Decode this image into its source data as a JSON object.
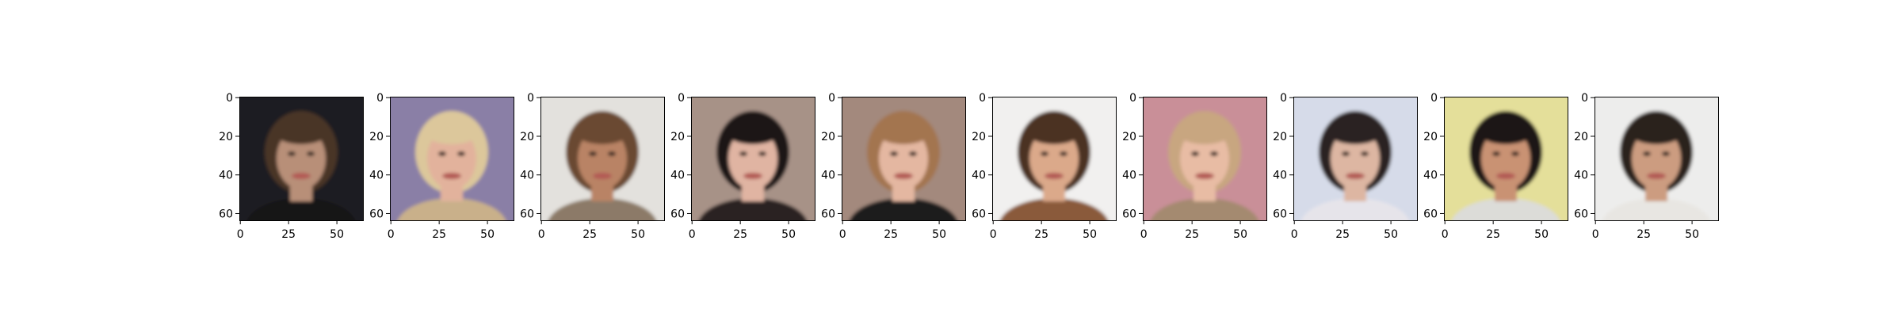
{
  "chart_data": {
    "type": "image-grid",
    "panel_count": 10,
    "image_size": [
      64,
      64
    ],
    "x_ticks": [
      0,
      25,
      50
    ],
    "y_ticks": [
      0,
      20,
      40,
      60
    ],
    "grid": false,
    "panels": [
      {
        "content": "portrait",
        "background": "dark",
        "bg_color": "#1c1a22",
        "hair_color": "#4a3526",
        "skin_color": "#b88f78",
        "shirt_color": "#141218"
      },
      {
        "content": "portrait",
        "background": "purple",
        "bg_color": "#8a7fa6",
        "hair_color": "#dcc79b",
        "skin_color": "#e2b29c",
        "shirt_color": "#c9b08a"
      },
      {
        "content": "portrait",
        "background": "light",
        "bg_color": "#e3e1dd",
        "hair_color": "#6a4a30",
        "skin_color": "#b98365",
        "shirt_color": "#8c7a68"
      },
      {
        "content": "portrait",
        "background": "gray",
        "bg_color": "#a79287",
        "hair_color": "#1f1714",
        "skin_color": "#e0b4a2",
        "shirt_color": "#2a2321"
      },
      {
        "content": "portrait",
        "background": "taupe",
        "bg_color": "#a3897d",
        "hair_color": "#a37550",
        "skin_color": "#e4b7a1",
        "shirt_color": "#1e1c1c"
      },
      {
        "content": "portrait",
        "background": "white",
        "bg_color": "#f1f0ef",
        "hair_color": "#4b3021",
        "skin_color": "#dba98a",
        "shirt_color": "#8a5a3a"
      },
      {
        "content": "portrait",
        "background": "pink",
        "bg_color": "#c98f98",
        "hair_color": "#c8a680",
        "skin_color": "#e8bca4",
        "shirt_color": "#a48a70"
      },
      {
        "content": "portrait",
        "background": "pale",
        "bg_color": "#d6dbe9",
        "hair_color": "#2c2320",
        "skin_color": "#ddb6a2",
        "shirt_color": "#e6e4ea"
      },
      {
        "content": "portrait",
        "background": "yellow",
        "bg_color": "#e4df9a",
        "hair_color": "#1e1612",
        "skin_color": "#c99273",
        "shirt_color": "#dcdcd8"
      },
      {
        "content": "portrait",
        "background": "white",
        "bg_color": "#ededec",
        "hair_color": "#2a201b",
        "skin_color": "#cc9c80",
        "shirt_color": "#e8e6e2"
      }
    ]
  }
}
